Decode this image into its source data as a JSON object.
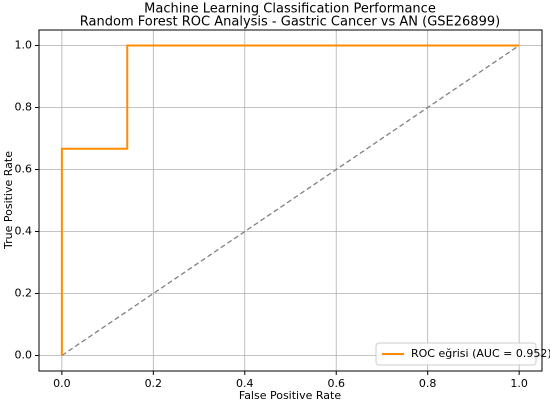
{
  "chart_data": {
    "type": "line",
    "title": "Machine Learning Classification Performance",
    "subtitle": "Random Forest ROC Analysis - Gastric Cancer vs AN (GSE26899)",
    "x_label": "False Positive Rate",
    "y_label": "True Positive Rate",
    "xlim": [
      -0.05,
      1.05
    ],
    "ylim": [
      -0.05,
      1.05
    ],
    "xticks": [
      {
        "value": 0,
        "label": "0.0"
      },
      0.2,
      0.4,
      0.6,
      0.8,
      {
        "value": 1,
        "label": "1.0"
      }
    ],
    "yticks": [
      {
        "value": 0,
        "label": "0.0"
      },
      0.2,
      0.4,
      0.6,
      0.8,
      {
        "value": 1,
        "label": "1.0"
      }
    ],
    "grid": true,
    "legend_position": "lower right",
    "series": [
      {
        "name": "ROC eğrisi (AUC = 0.952)",
        "color": "#ff8c00",
        "x": [
          0,
          0,
          0.143,
          0.143,
          1
        ],
        "values": [
          0,
          0.667,
          0.667,
          1,
          1
        ]
      }
    ],
    "reference_line": {
      "x": [
        0,
        1
      ],
      "values": [
        0,
        1
      ],
      "color": "#808080",
      "dashed": true
    }
  }
}
